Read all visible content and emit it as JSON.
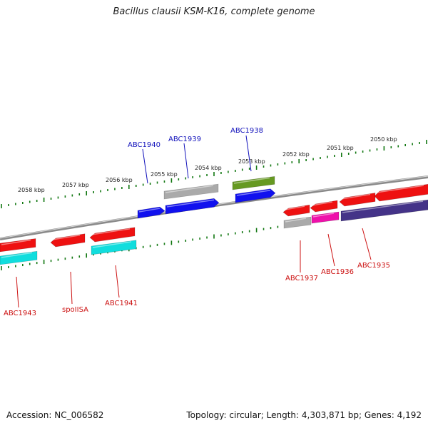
{
  "title": "Bacillus clausii KSM-K16, complete genome",
  "footer": {
    "accession": "Accession: NC_006582",
    "summary": "Topology: circular; Length: 4,303,871 bp; Genes: 4,192"
  },
  "ticks": [
    "2058 kbp",
    "2057 kbp",
    "2056 kbp",
    "2055 kbp",
    "2054 kbp",
    "2053 kbp",
    "2052 kbp",
    "2051 kbp",
    "2050 kbp"
  ],
  "colors": {
    "red": "#ee1111",
    "blue": "#1111ee",
    "cyan": "#11dddd",
    "gray": "#aaaaaa",
    "olive": "#669922",
    "magenta": "#ee11aa",
    "navy": "#443388",
    "label_top": "#1111bb",
    "label_bottom": "#cc1111",
    "tick": "#117711"
  },
  "labels_top": [
    {
      "name": "ABC1940"
    },
    {
      "name": "ABC1939"
    },
    {
      "name": "ABC1938"
    }
  ],
  "labels_bottom": [
    {
      "name": "ABC1943"
    },
    {
      "name": "spoIISA"
    },
    {
      "name": "ABC1941"
    },
    {
      "name": "ABC1937"
    },
    {
      "name": "ABC1936"
    },
    {
      "name": "ABC1935"
    }
  ]
}
